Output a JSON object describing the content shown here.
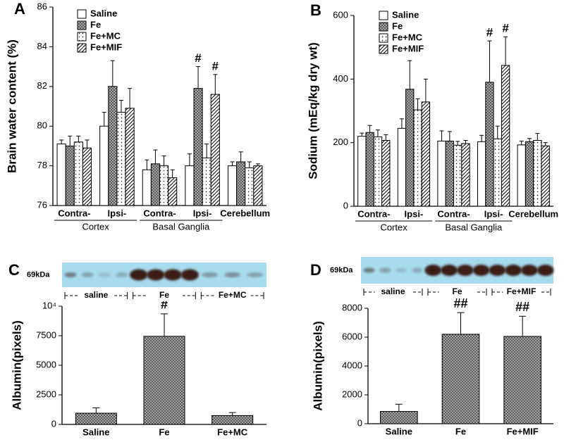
{
  "chart_data": [
    {
      "type": "grouped_bar",
      "panel": "A",
      "ylabel": "Brain water content (%)",
      "categories": [
        "Contra-",
        "Ipsi-",
        "Contra-",
        "Ipsi-",
        "Cerebellum"
      ],
      "category_groups": [
        "Cortex",
        "Cortex",
        "Basal Ganglia",
        "Basal Ganglia",
        null
      ],
      "series": [
        {
          "name": "Saline",
          "pattern": "solid",
          "color": "#ffffff",
          "values": [
            79.1,
            80.0,
            77.8,
            78.0,
            78.0
          ],
          "errors": [
            0.2,
            0.7,
            0.5,
            0.6,
            0.2
          ],
          "significance": [
            null,
            null,
            null,
            null,
            null
          ]
        },
        {
          "name": "Fe",
          "pattern": "crosshatch",
          "color": "#555555",
          "values": [
            79.0,
            82.0,
            78.1,
            81.9,
            78.2
          ],
          "errors": [
            0.5,
            1.3,
            0.7,
            1.1,
            0.5
          ],
          "significance": [
            null,
            null,
            null,
            "#",
            null
          ]
        },
        {
          "name": "Fe+MC",
          "pattern": "dots",
          "color": "#ffffff",
          "values": [
            79.2,
            80.7,
            78.0,
            78.4,
            77.9
          ],
          "errors": [
            0.3,
            0.6,
            0.5,
            0.7,
            0.3
          ],
          "significance": [
            null,
            null,
            null,
            null,
            null
          ]
        },
        {
          "name": "Fe+MIF",
          "pattern": "diagonal",
          "color": "#ffffff",
          "values": [
            78.9,
            80.9,
            77.4,
            81.6,
            78.0
          ],
          "errors": [
            0.4,
            1.0,
            0.4,
            1.0,
            0.1
          ],
          "significance": [
            null,
            null,
            null,
            "#",
            null
          ]
        }
      ],
      "ylim": [
        76,
        86
      ],
      "yticks": [
        76,
        78,
        80,
        82,
        84,
        86
      ],
      "legend": "upper left"
    },
    {
      "type": "grouped_bar",
      "panel": "B",
      "ylabel": "Sodium (mEq/kg dry wt)",
      "categories": [
        "Contra-",
        "Ipsi-",
        "Contra-",
        "Ipsi-",
        "Cerebellum"
      ],
      "category_groups": [
        "Cortex",
        "Cortex",
        "Basal Ganglia",
        "Basal Ganglia",
        null
      ],
      "series": [
        {
          "name": "Saline",
          "pattern": "solid",
          "color": "#ffffff",
          "values": [
            220,
            245,
            205,
            203,
            193
          ],
          "errors": [
            10,
            30,
            32,
            20,
            12
          ],
          "significance": [
            null,
            null,
            null,
            null,
            null
          ]
        },
        {
          "name": "Fe",
          "pattern": "crosshatch",
          "color": "#555555",
          "values": [
            232,
            368,
            205,
            390,
            203
          ],
          "errors": [
            22,
            90,
            30,
            130,
            10
          ],
          "significance": [
            null,
            null,
            null,
            "#",
            null
          ]
        },
        {
          "name": "Fe+MC",
          "pattern": "dots",
          "color": "#ffffff",
          "values": [
            218,
            303,
            192,
            212,
            207
          ],
          "errors": [
            22,
            35,
            12,
            40,
            22
          ],
          "significance": [
            null,
            null,
            null,
            null,
            null
          ]
        },
        {
          "name": "Fe+MIF",
          "pattern": "diagonal",
          "color": "#ffffff",
          "values": [
            207,
            328,
            197,
            443,
            190
          ],
          "errors": [
            18,
            72,
            10,
            90,
            10
          ],
          "significance": [
            null,
            null,
            null,
            "#",
            null
          ]
        }
      ],
      "ylim": [
        0,
        600
      ],
      "yticks": [
        0,
        200,
        400,
        600
      ],
      "legend": "upper left"
    },
    {
      "type": "bar",
      "panel": "C",
      "ylabel": "Albumin(pixels)",
      "blot": {
        "label": "69kDa",
        "lanes": [
          "saline",
          "Fe",
          "Fe+MC"
        ]
      },
      "categories": [
        "Saline",
        "Fe",
        "Fe+MC"
      ],
      "values": [
        950,
        7450,
        750
      ],
      "errors": [
        450,
        1900,
        250
      ],
      "significance": [
        null,
        "#",
        null
      ],
      "pattern": "crosshatch",
      "color": "#555555",
      "ylim": [
        0,
        10000
      ],
      "yticks": [
        0,
        2500,
        5000,
        7500,
        {
          "value": 10000,
          "label": "10⁴"
        }
      ]
    },
    {
      "type": "bar",
      "panel": "D",
      "ylabel": "Albumin(pixels)",
      "blot": {
        "label": "69kDa",
        "lanes": [
          "saline",
          "Fe",
          "Fe+MIF"
        ]
      },
      "categories": [
        "Saline",
        "Fe",
        "Fe+MIF"
      ],
      "values": [
        850,
        6200,
        6050
      ],
      "errors": [
        500,
        1500,
        1400
      ],
      "significance": [
        null,
        "##",
        "##"
      ],
      "pattern": "crosshatch",
      "color": "#555555",
      "ylim": [
        0,
        8000
      ],
      "yticks": [
        0,
        2000,
        4000,
        6000,
        8000
      ]
    }
  ]
}
